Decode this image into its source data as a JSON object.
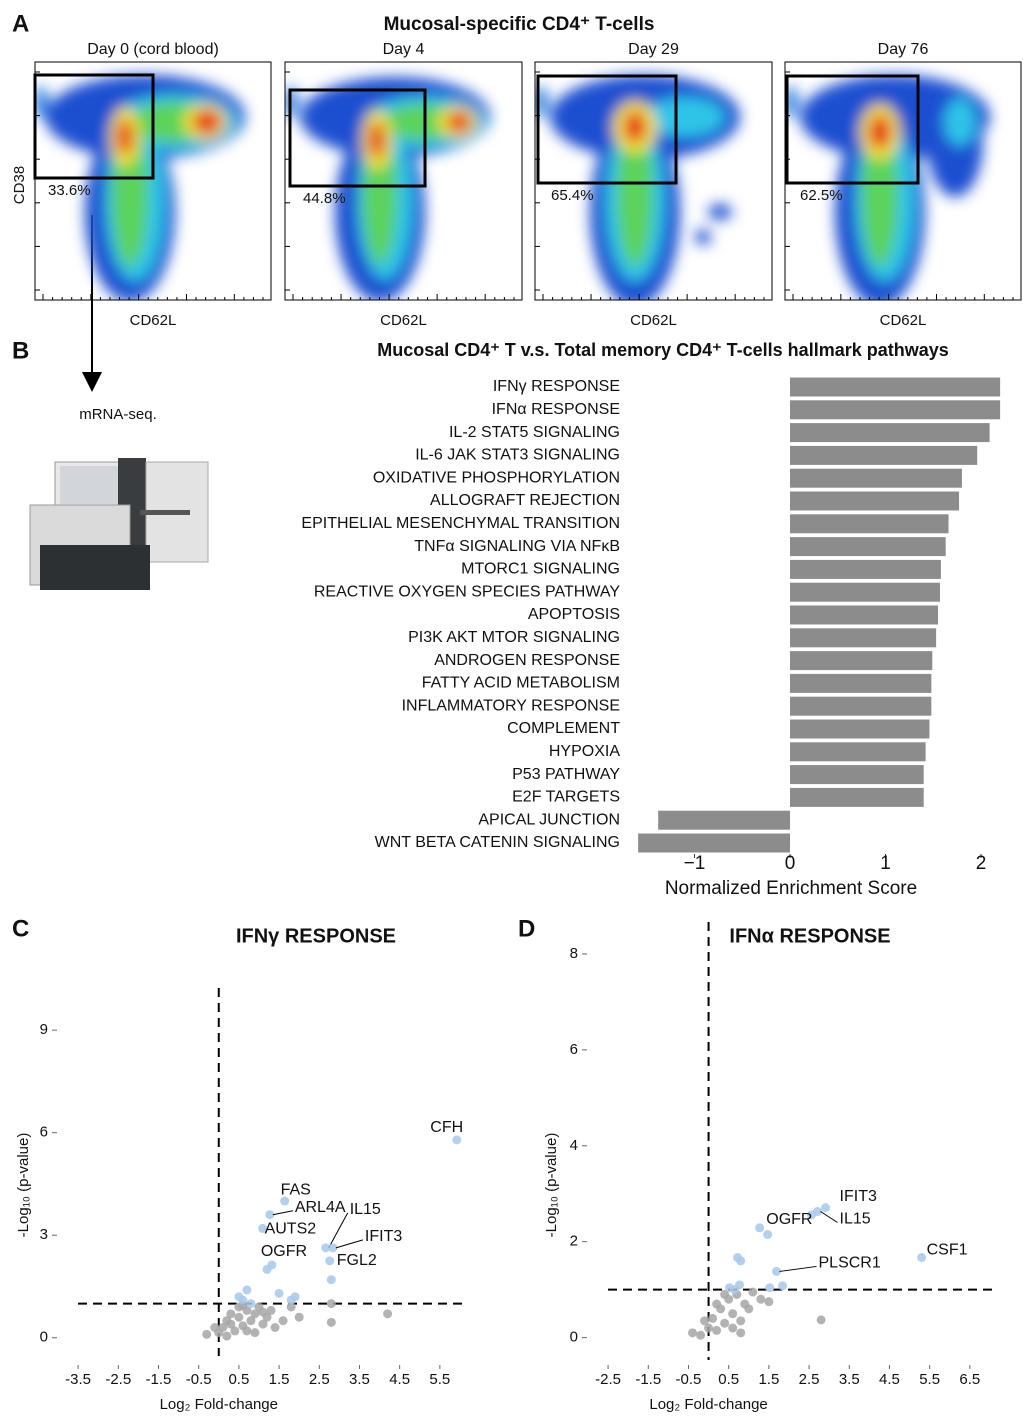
{
  "panel_a": {
    "letter": "A",
    "title": "Mucosal-specific CD4⁺ T-cells",
    "y_label": "CD38",
    "plots": [
      {
        "title": "Day 0 (cord blood)",
        "gate": "33.6%",
        "x_label": "CD62L"
      },
      {
        "title": "Day 4",
        "gate": "44.8%",
        "x_label": "CD62L"
      },
      {
        "title": "Day 29",
        "gate": "65.4%",
        "x_label": "CD62L"
      },
      {
        "title": "Day 76",
        "gate": "62.5%",
        "x_label": "CD62L"
      }
    ]
  },
  "panel_b_side": {
    "letter": "B",
    "step": "mRNA-seq."
  },
  "chart_data": [
    {
      "type": "bar",
      "orientation": "horizontal",
      "title": "Mucosal CD4⁺ T v.s. Total memory CD4⁺ T-cells hallmark pathways",
      "x_label": "Normalized Enrichment Score",
      "color": "#8c8c8c",
      "categories": [
        "IFNγ RESPONSE",
        "IFNα RESPONSE",
        "IL-2 STAT5 SIGNALING",
        "IL-6 JAK STAT3 SIGNALING",
        "OXIDATIVE PHOSPHORYLATION",
        "ALLOGRAFT REJECTION",
        "EPITHELIAL MESENCHYMAL TRANSITION",
        "TNFα SIGNALING VIA NFκB",
        "MTORC1 SIGNALING",
        "REACTIVE OXYGEN SPECIES PATHWAY",
        "APOPTOSIS",
        "PI3K AKT MTOR SIGNALING",
        "ANDROGEN RESPONSE",
        "FATTY ACID METABOLISM",
        "INFLAMMATORY RESPONSE",
        "COMPLEMENT",
        "HYPOXIA",
        "P53 PATHWAY",
        "E2F TARGETS",
        "APICAL JUNCTION",
        "WNT BETA CATENIN SIGNALING"
      ],
      "values": [
        2.2,
        2.2,
        2.09,
        1.96,
        1.8,
        1.77,
        1.66,
        1.63,
        1.58,
        1.57,
        1.55,
        1.53,
        1.49,
        1.48,
        1.48,
        1.46,
        1.42,
        1.4,
        1.4,
        -1.38,
        -1.59
      ],
      "xlim": [
        -1.65,
        2.25
      ],
      "xticks": [
        {
          "value": -1,
          "label": "−1"
        },
        0,
        1,
        2
      ]
    },
    {
      "type": "scatter",
      "panel_label": "C",
      "title": "IFNγ RESPONSE",
      "x_label": "Log₂ Fold-change",
      "y_label": "-Log₁₀ (p-value)",
      "xlim": [
        -3.9,
        6.2
      ],
      "ylim": [
        -0.3,
        10
      ],
      "xticks": [
        -3.5,
        -2.5,
        -1.5,
        -0.5,
        0.5,
        1.5,
        2.5,
        3.5,
        4.5,
        5.5
      ],
      "yticks": [
        0,
        3,
        6,
        9
      ],
      "vline": 0,
      "hline": 1,
      "series": [
        {
          "color": "#a6a6a6",
          "x": [
            -0.3,
            0,
            0.1,
            0.2,
            0.3,
            0.4,
            0.5,
            0.6,
            0.7,
            0.8,
            0.9,
            1.0,
            1.1,
            1.2,
            1.3,
            1.4,
            0.5,
            0.7,
            0.9,
            1.1,
            1.6,
            1.8,
            2.0,
            0.3,
            0.6,
            2.8,
            4.2,
            2.8,
            -0.1,
            0.2
          ],
          "y": [
            0.1,
            0.15,
            0.3,
            0.05,
            0.4,
            0.2,
            0.6,
            0.35,
            0.8,
            0.5,
            0.7,
            0.9,
            0.4,
            0.6,
            0.8,
            0.3,
            0.9,
            0.2,
            0.15,
            0.75,
            0.5,
            0.9,
            0.6,
            0.7,
            0.95,
            0.45,
            0.7,
            1.0,
            0.3,
            0.5
          ]
        },
        {
          "color": "#a8c8ea",
          "x": [
            0.6,
            0.8,
            1.5,
            1.9,
            2.8,
            1.2,
            0.7,
            1.8,
            0.5
          ],
          "y": [
            1.1,
            1.0,
            1.3,
            1.2,
            1.7,
            2.0,
            1.4,
            1.1,
            1.2
          ]
        },
        {
          "color": "#a8c8ea",
          "x": [
            5.92,
            1.64,
            1.27,
            1.09,
            2.66,
            2.84,
            1.32,
            2.76
          ],
          "y": [
            5.79,
            4.0,
            3.6,
            3.2,
            2.63,
            2.63,
            2.13,
            2.25
          ],
          "labels": [
            "CFH",
            "FAS",
            "ARL4A",
            "AUTS2",
            "IL15",
            "IFIT3",
            "OGFR",
            "FGL2"
          ]
        }
      ]
    },
    {
      "type": "scatter",
      "panel_label": "D",
      "title": "IFNα RESPONSE",
      "x_label": "Log₂ Fold-change",
      "y_label": "-Log₁₀ (p-value)",
      "xlim": [
        -2.9,
        7.2
      ],
      "ylim": [
        -0.3,
        8.5
      ],
      "xticks": [
        -2.5,
        -1.5,
        -0.5,
        0.5,
        1.5,
        2.5,
        3.5,
        4.5,
        5.5,
        6.5
      ],
      "yticks": [
        0,
        2,
        4,
        6,
        8
      ],
      "vline": 0,
      "hline": 1,
      "series": [
        {
          "color": "#a6a6a6",
          "x": [
            -0.4,
            -0.2,
            0,
            0.1,
            0.2,
            0.3,
            0.4,
            0.5,
            0.6,
            0.7,
            0.8,
            0.9,
            1.0,
            1.1,
            1.3,
            1.5,
            0.4,
            0.2,
            0.6,
            2.8,
            -0.1,
            0.8
          ],
          "y": [
            0.1,
            0.05,
            0.2,
            0.4,
            0.15,
            0.6,
            0.3,
            0.8,
            0.5,
            0.9,
            0.35,
            0.7,
            0.6,
            0.95,
            0.8,
            0.75,
            0.9,
            0.7,
            0.2,
            0.37,
            0.35,
            0.1
          ]
        },
        {
          "color": "#a8c8ea",
          "x": [
            1.27,
            1.47,
            0.72,
            0.8,
            0.52,
            0.77,
            1.52,
            1.84,
            0.65
          ],
          "y": [
            2.29,
            2.15,
            1.67,
            1.6,
            1.04,
            1.1,
            1.04,
            1.08,
            1.0
          ]
        },
        {
          "color": "#a8c8ea",
          "x": [
            2.91,
            2.71,
            2.56,
            5.3,
            1.69
          ],
          "y": [
            2.71,
            2.63,
            2.56,
            1.67,
            1.38
          ],
          "labels": [
            "IFIT3",
            "IL15",
            "OGFR",
            "CSF1",
            "PLSCR1"
          ]
        }
      ]
    }
  ]
}
